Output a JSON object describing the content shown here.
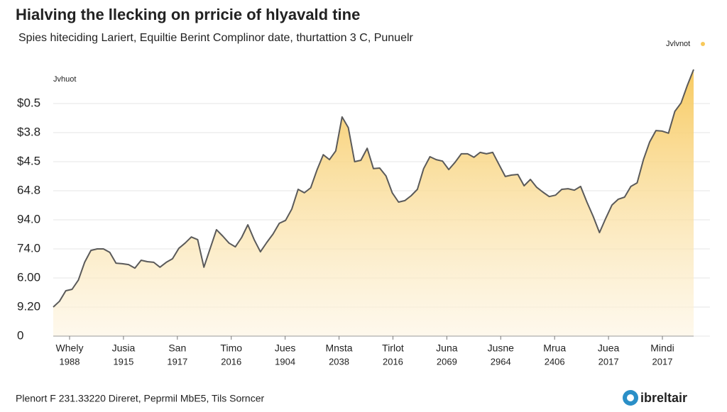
{
  "chart_data": {
    "type": "area",
    "title": "Hialving the llecking on prricie of hlyavald tine",
    "subtitle": "Spies hiteciding Lariert, Equiltie Berint Complinor date, thurtattion 3 C, Punuelr",
    "y_axis_label": "Jvhuot",
    "legend": {
      "name": "Jvlvnot",
      "corner": "top-right"
    },
    "footer": "Plenort F 231.33220 Direret, Peprmil MbE5, Tils Sorncer",
    "logo": "ibreltair",
    "x_labels": [
      {
        "name": "Whely",
        "year": "1988"
      },
      {
        "name": "Jusia",
        "year": "1915"
      },
      {
        "name": "San",
        "year": "1917"
      },
      {
        "name": "Timo",
        "year": "2016"
      },
      {
        "name": "Jues",
        "year": "1904"
      },
      {
        "name": "Mnsta",
        "year": "2038"
      },
      {
        "name": "Tirlot",
        "year": "2016"
      },
      {
        "name": "Juna",
        "year": "2069"
      },
      {
        "name": "Jusne",
        "year": "2964"
      },
      {
        "name": "Mrua",
        "year": "2406"
      },
      {
        "name": "Juea",
        "year": "2017"
      },
      {
        "name": "Mindi",
        "year": "2017"
      }
    ],
    "color": "#f7c85a",
    "line_color": "#5a5a5a",
    "grid": true,
    "ylim": [
      0,
      9.5
    ],
    "yticks": [
      0,
      {
        "value": 1,
        "label": "9.20"
      },
      {
        "value": 2,
        "label": "6.00"
      },
      {
        "value": 3,
        "label": "74.0"
      },
      {
        "value": 4,
        "label": "94.0"
      },
      {
        "value": 5,
        "label": "64.8"
      },
      {
        "value": 6,
        "label": "$4.5"
      },
      {
        "value": 7,
        "label": "$3.8"
      },
      {
        "value": 8,
        "label": "$0.5"
      }
    ],
    "values": [
      1.0,
      1.2,
      1.56,
      1.61,
      1.93,
      2.54,
      2.95,
      3.0,
      3.0,
      2.88,
      2.51,
      2.49,
      2.46,
      2.34,
      2.61,
      2.56,
      2.54,
      2.37,
      2.54,
      2.66,
      3.02,
      3.2,
      3.41,
      3.32,
      2.37,
      3.02,
      3.66,
      3.44,
      3.2,
      3.07,
      3.39,
      3.83,
      3.32,
      2.9,
      3.22,
      3.51,
      3.88,
      3.98,
      4.37,
      5.05,
      4.93,
      5.1,
      5.71,
      6.24,
      6.07,
      6.37,
      7.54,
      7.17,
      6.0,
      6.05,
      6.46,
      5.76,
      5.78,
      5.51,
      4.93,
      4.61,
      4.66,
      4.83,
      5.05,
      5.76,
      6.17,
      6.07,
      6.02,
      5.73,
      5.98,
      6.27,
      6.27,
      6.15,
      6.32,
      6.27,
      6.32,
      5.9,
      5.49,
      5.54,
      5.56,
      5.17,
      5.39,
      5.12,
      4.95,
      4.8,
      4.85,
      5.05,
      5.07,
      5.02,
      5.15,
      4.61,
      4.12,
      3.56,
      4.05,
      4.51,
      4.71,
      4.78,
      5.15,
      5.27,
      6.07,
      6.68,
      7.07,
      7.05,
      6.98,
      7.73,
      8.02,
      8.63,
      9.17
    ]
  }
}
